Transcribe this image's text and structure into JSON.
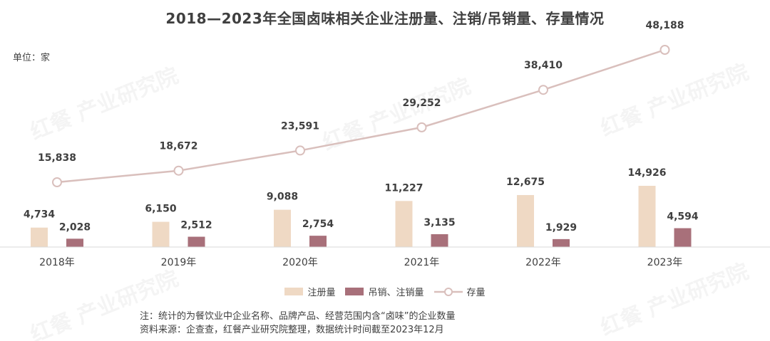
{
  "title": "2018—2023年全国卤味相关企业注册量、注销/吊销量、存量情况",
  "unit_label": "单位：家",
  "legend": {
    "registered": "注册量",
    "cancelled": "吊销、注销量",
    "stock": "存量"
  },
  "notes": {
    "note": "注：统计的为餐饮业中企业名称、品牌产品、经营范围内含“卤味”的企业数量",
    "source": "资料来源：企查查，红餐产业研究院整理，数据统计时间截至2023年12月"
  },
  "watermark": "红餐 产业研究院",
  "colors": {
    "registered": "#efd9c4",
    "cancelled": "#a8707a",
    "stock": "#d9bfbc",
    "axis": "#d9d9d9"
  },
  "chart_data": {
    "type": "bar",
    "categories": [
      "2018年",
      "2019年",
      "2020年",
      "2021年",
      "2022年",
      "2023年"
    ],
    "series": [
      {
        "name": "注册量",
        "type": "bar",
        "values": [
          4734,
          6150,
          9088,
          11227,
          12675,
          14926
        ],
        "labels": [
          "4,734",
          "6,150",
          "9,088",
          "11,227",
          "12,675",
          "14,926"
        ]
      },
      {
        "name": "吊销、注销量",
        "type": "bar",
        "values": [
          2028,
          2512,
          2754,
          3135,
          1929,
          4594
        ],
        "labels": [
          "2,028",
          "2,512",
          "2,754",
          "3,135",
          "1,929",
          "4,594"
        ]
      },
      {
        "name": "存量",
        "type": "line",
        "values": [
          15838,
          18672,
          23591,
          29252,
          38410,
          48188
        ],
        "labels": [
          "15,838",
          "18,672",
          "23,591",
          "29,252",
          "38,410",
          "48,188"
        ]
      }
    ],
    "legend_position": "bottom",
    "grid": false
  }
}
